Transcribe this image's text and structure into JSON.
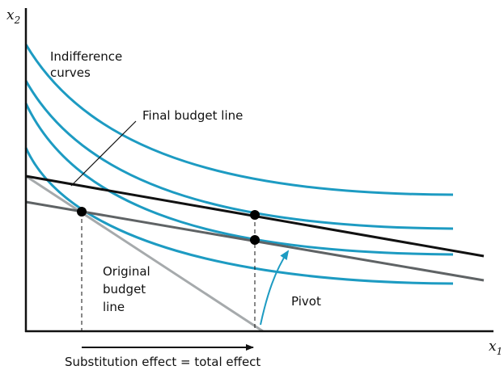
{
  "axes": {
    "y_label": {
      "base": "x",
      "sub": "2"
    },
    "x_label": {
      "base": "x",
      "sub": "1"
    }
  },
  "labels": {
    "indifference_curves": [
      "Indifference",
      "curves"
    ],
    "final_budget_line": "Final budget line",
    "original_budget_line": [
      "Original",
      "budget",
      "line"
    ],
    "pivot": "Pivot",
    "effect": "Substitution effect = total effect"
  }
}
